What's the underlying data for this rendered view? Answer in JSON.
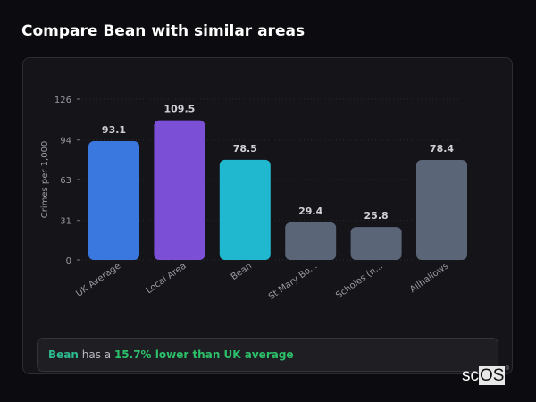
{
  "title": "Compare Bean with similar areas",
  "chart_data": {
    "type": "bar",
    "ylabel": "Crimes per 1,000",
    "xlabel": "",
    "ylim": [
      0,
      126
    ],
    "yticks": [
      0,
      31,
      63,
      94,
      126
    ],
    "grid": true,
    "categories": [
      "UK Average",
      "Local Area",
      "Bean",
      "St Mary Bo...",
      "Scholes (n...",
      "Allhallows"
    ],
    "values": [
      93.1,
      109.5,
      78.5,
      29.4,
      25.8,
      78.4
    ],
    "colors": [
      "#3a78e0",
      "#7b4fd6",
      "#20b8cf",
      "#5a6577",
      "#5a6577",
      "#5a6577"
    ]
  },
  "summary": {
    "area": "Bean",
    "middle": " has a ",
    "result": "15.7% lower than UK average"
  },
  "logo": {
    "text_a": "sc",
    "text_b": "OS"
  }
}
